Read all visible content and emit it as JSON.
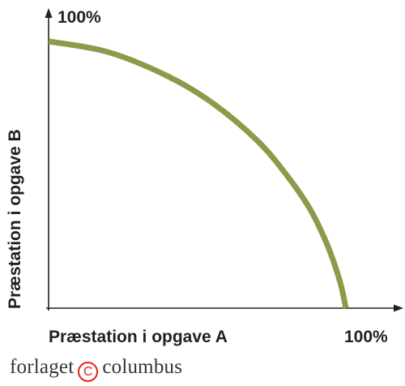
{
  "chart_data": {
    "type": "line",
    "title": "",
    "xlabel": "Præstation i opgave A",
    "ylabel": "Præstation i opgave B",
    "x_max_label": "100%",
    "y_max_label": "100%",
    "xlim": [
      0,
      100
    ],
    "ylim": [
      0,
      100
    ],
    "grid": false,
    "legend": "none",
    "series": [
      {
        "shape": "concave production-possibility frontier",
        "color": "#8a9c4a",
        "x": [
          0,
          20,
          40,
          55,
          70,
          80,
          88,
          94,
          98,
          100
        ],
        "y": [
          100,
          96,
          87,
          77,
          63,
          50,
          37,
          23,
          10,
          0
        ]
      }
    ]
  },
  "footer": {
    "brand_left": "forlaget",
    "brand_symbol": "C",
    "brand_right": "columbus",
    "mark_color": "#e2231a"
  }
}
